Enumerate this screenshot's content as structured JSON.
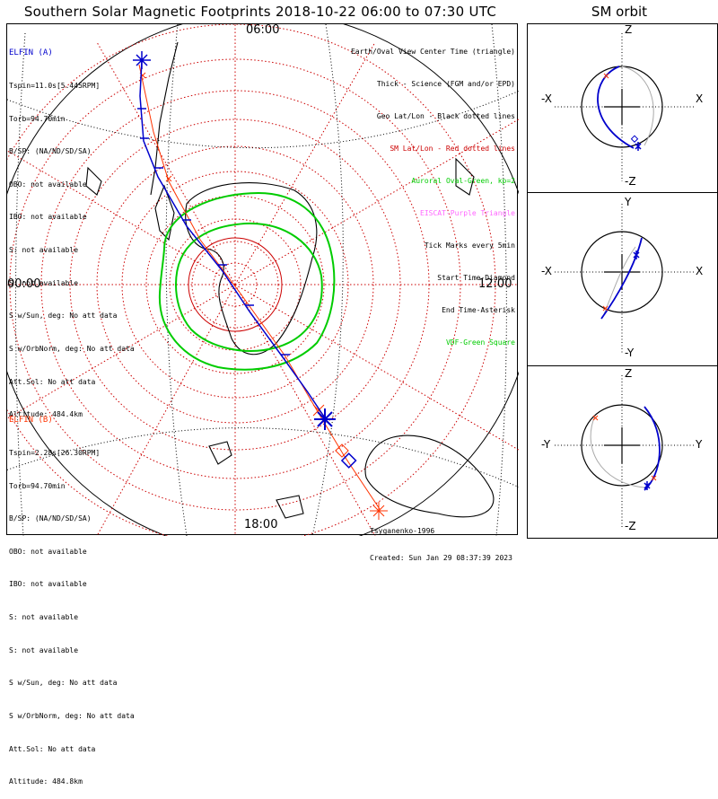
{
  "title": "Southern Solar Magnetic Footprints 2018-10-22 06:00 to 07:30 UTC",
  "orbit_title": "SM orbit",
  "time_labels": {
    "top": "06:00",
    "left": "00:00",
    "right": "12:00",
    "bottom": "18:00"
  },
  "probe_a": {
    "name": "ELFIN (A)",
    "color": "#0000cc",
    "lines": [
      "Tspin=11.0s[5.445RPM]",
      "Torb=94.70min",
      "B/SP: (NA/ND/SD/SA)",
      "OBO: not available",
      "IBO: not available",
      "S: not available",
      "S: not available",
      "S w/Sun, deg: No att data",
      "S w/OrbNorm, deg: No att data",
      "Att.Sol: No att data",
      "Altitude: 484.4km"
    ]
  },
  "probe_b": {
    "name": "ELFIN (B)",
    "color": "#ff3300",
    "lines": [
      "Tspin=2.28s[26.30RPM]",
      "Torb=94.70min",
      "B/SP: (NA/ND/SD/SA)",
      "OBO: not available",
      "IBO: not available",
      "S: not available",
      "S: not available",
      "S w/Sun, deg: No att data",
      "S w/OrbNorm, deg: No att data",
      "Att.Sol: No att data",
      "Altitude: 484.8km"
    ]
  },
  "legend": [
    {
      "text": "Earth/Oval View Center Time (triangle)",
      "color": "#000000"
    },
    {
      "text": "Thick - Science (FGM and/or EPD)",
      "color": "#000000"
    },
    {
      "text": "Geo Lat/Lon - Black dotted lines",
      "color": "#000000"
    },
    {
      "text": "SM Lat/Lon - Red dotted lines",
      "color": "#cc0000"
    },
    {
      "text": "Auroral Oval-Green, kp=2",
      "color": "#00cc00"
    },
    {
      "text": "EISCAT-Purple Triangle",
      "color": "#ff66ff"
    },
    {
      "text": "Tick Marks every 5min",
      "color": "#000000"
    },
    {
      "text": "Start Time-Diamond",
      "color": "#000000"
    },
    {
      "text": "End Time-Asterisk",
      "color": "#000000"
    },
    {
      "text": "VDF-Green Square",
      "color": "#00cc00"
    }
  ],
  "credit": {
    "author": "Tsyganenko-1996",
    "created": "Created: Sun Jan 29 08:37:39 2023"
  },
  "panels": [
    {
      "top": "Z",
      "left": "-X",
      "right": "X",
      "bottom": "-Z"
    },
    {
      "top": "Y",
      "left": "-X",
      "right": "X",
      "bottom": "-Y"
    },
    {
      "top": "Z",
      "left": "-Y",
      "right": "Y",
      "bottom": "-Z"
    }
  ],
  "colors": {
    "auroral_oval": "#00cc00",
    "sm_grid": "#cc0000",
    "orbit_a": "#0000cc",
    "orbit_b": "#ff3300"
  }
}
